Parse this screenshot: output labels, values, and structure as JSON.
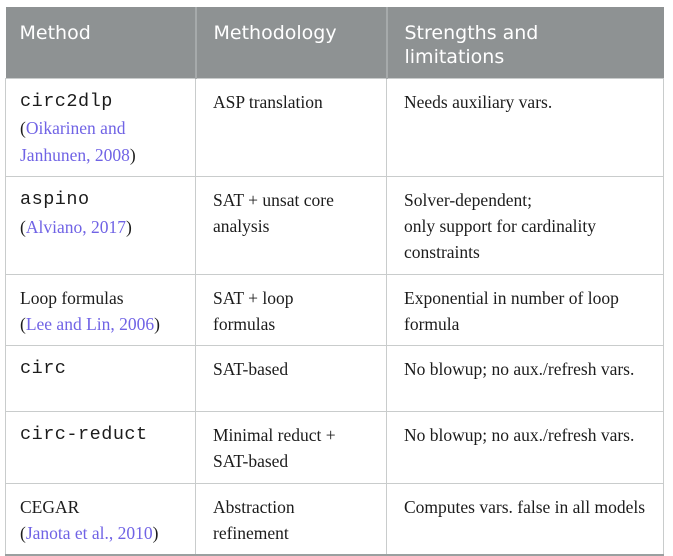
{
  "chrome": {
    "paren_open": "(",
    "paren_close": ")"
  },
  "colors": {
    "header_bg": "#8e9293",
    "header_text": "#ffffff",
    "header_divider": "#a6aaab",
    "border_light": "#c9cccc",
    "border_bottom": "#9aa0a0",
    "citation": "#7063e5",
    "body_text": "#1c1c1c",
    "page_bg": "#ffffff"
  },
  "table": {
    "headers": [
      "Method",
      "Methodology",
      "Strengths and limitations"
    ],
    "rows": [
      {
        "method": "circ2dlp",
        "citation": "Oikarinen and Janhunen, 2008",
        "methodology": "ASP translation",
        "strengths": "Needs auxiliary vars."
      },
      {
        "method": "aspino",
        "citation": "Alviano, 2017",
        "methodology": "SAT + unsat core analysis",
        "strengths": "Solver-dependent;\nonly support for cardinality constraints"
      },
      {
        "method": "Loop formulas",
        "citation": "Lee and Lin, 2006",
        "methodology": "SAT + loop formulas",
        "strengths": "Exponential in number of loop formula"
      },
      {
        "method": "circ",
        "methodology": "SAT-based",
        "strengths": "No blowup; no aux./refresh vars."
      },
      {
        "method": "circ-reduct",
        "methodology": "Minimal reduct + SAT-based",
        "strengths": "No blowup; no aux./refresh vars."
      },
      {
        "method": "CEGAR",
        "citation": "Janota et al., 2010",
        "methodology": "Abstraction refinement",
        "strengths": "Computes vars. false in all models"
      }
    ]
  }
}
